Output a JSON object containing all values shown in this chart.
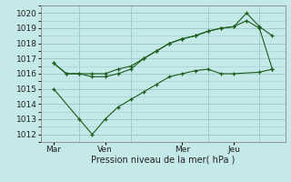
{
  "xlabel": "Pression niveau de la mer( hPa )",
  "background_color": "#c5e8e8",
  "grid_color": "#a0cccc",
  "line_color": "#1a5c1a",
  "ylim": [
    1011.5,
    1020.5
  ],
  "yticks": [
    1012,
    1013,
    1014,
    1015,
    1016,
    1017,
    1018,
    1019,
    1020
  ],
  "xtick_labels": [
    "Mar",
    "Ven",
    "Mer",
    "Jeu"
  ],
  "xtick_positions": [
    0.5,
    2.5,
    5.5,
    7.5
  ],
  "xlim": [
    0,
    9.5
  ],
  "vline_positions": [
    1.5,
    3.5,
    6.5,
    8.5
  ],
  "line1_x": [
    0.5,
    1.0,
    1.5,
    2.0,
    2.5,
    3.0,
    3.5,
    4.0,
    4.5,
    5.0,
    5.5,
    6.0,
    6.5,
    7.0,
    7.5,
    8.0,
    8.5,
    9.0
  ],
  "line1_y": [
    1016.7,
    1016.0,
    1016.0,
    1016.0,
    1016.0,
    1016.3,
    1016.5,
    1017.0,
    1017.5,
    1018.0,
    1018.3,
    1018.5,
    1018.8,
    1019.0,
    1019.1,
    1019.5,
    1019.0,
    1016.3
  ],
  "line2_x": [
    0.5,
    1.0,
    1.5,
    2.0,
    2.5,
    3.0,
    3.5,
    4.0,
    4.5,
    5.0,
    5.5,
    6.0,
    6.5,
    7.0,
    7.5,
    8.0,
    8.5,
    9.0
  ],
  "line2_y": [
    1016.7,
    1016.0,
    1016.0,
    1015.8,
    1015.8,
    1016.0,
    1016.3,
    1017.0,
    1017.5,
    1018.0,
    1018.3,
    1018.5,
    1018.8,
    1019.0,
    1019.1,
    1020.0,
    1019.1,
    1018.5
  ],
  "line3_x": [
    0.5,
    1.5,
    2.0,
    2.5,
    3.0,
    3.5,
    4.0,
    4.5,
    5.0,
    5.5,
    6.0,
    6.5,
    7.0,
    7.5,
    8.5,
    9.0
  ],
  "line3_y": [
    1015.0,
    1013.0,
    1012.0,
    1013.0,
    1013.8,
    1014.3,
    1014.8,
    1015.3,
    1015.8,
    1016.0,
    1016.2,
    1016.3,
    1016.0,
    1016.0,
    1016.1,
    1016.3
  ],
  "xlabel_fontsize": 7,
  "tick_fontsize": 6.5
}
